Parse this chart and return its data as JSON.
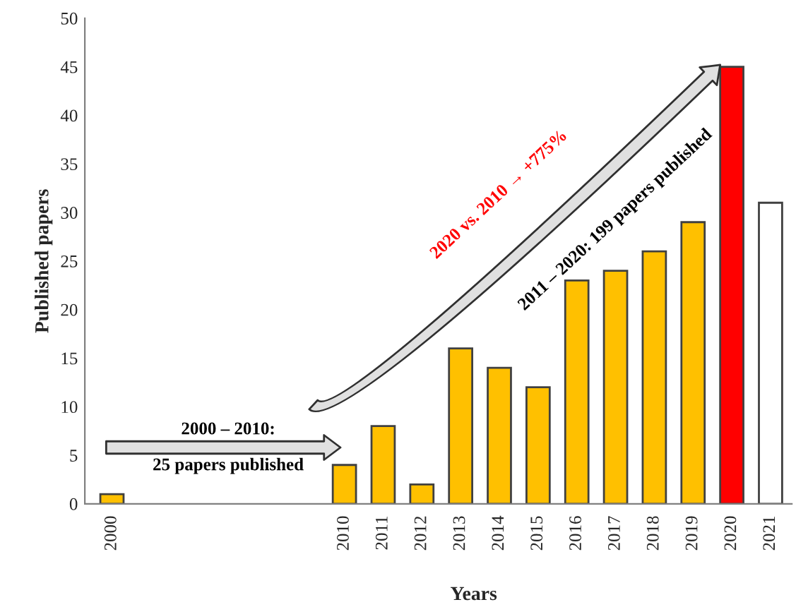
{
  "chart_data": {
    "type": "bar",
    "xlabel": "Years",
    "ylabel": "Published papers",
    "categories": [
      "2000",
      null,
      null,
      null,
      null,
      null,
      "2010",
      "2011",
      "2012",
      "2013",
      "2014",
      "2015",
      "2016",
      "2017",
      "2018",
      "2019",
      "2020",
      "2021"
    ],
    "values": [
      1,
      null,
      null,
      null,
      null,
      null,
      4,
      8,
      2,
      16,
      14,
      12,
      23,
      24,
      26,
      29,
      45,
      31
    ],
    "colors": [
      "#ffc000",
      null,
      null,
      null,
      null,
      null,
      "#ffc000",
      "#ffc000",
      "#ffc000",
      "#ffc000",
      "#ffc000",
      "#ffc000",
      "#ffc000",
      "#ffc000",
      "#ffc000",
      "#ffc000",
      "#ff0000",
      "#ffffff"
    ],
    "ylim": [
      0,
      50
    ],
    "yticks": [
      0,
      5,
      10,
      15,
      20,
      25,
      30,
      35,
      40,
      45,
      50
    ],
    "grid": false,
    "annotations": [
      "2000 – 2010:",
      "25 papers published",
      "2020 vs. 2010 → +775%",
      "2011 – 2020: 199 papers published"
    ]
  }
}
